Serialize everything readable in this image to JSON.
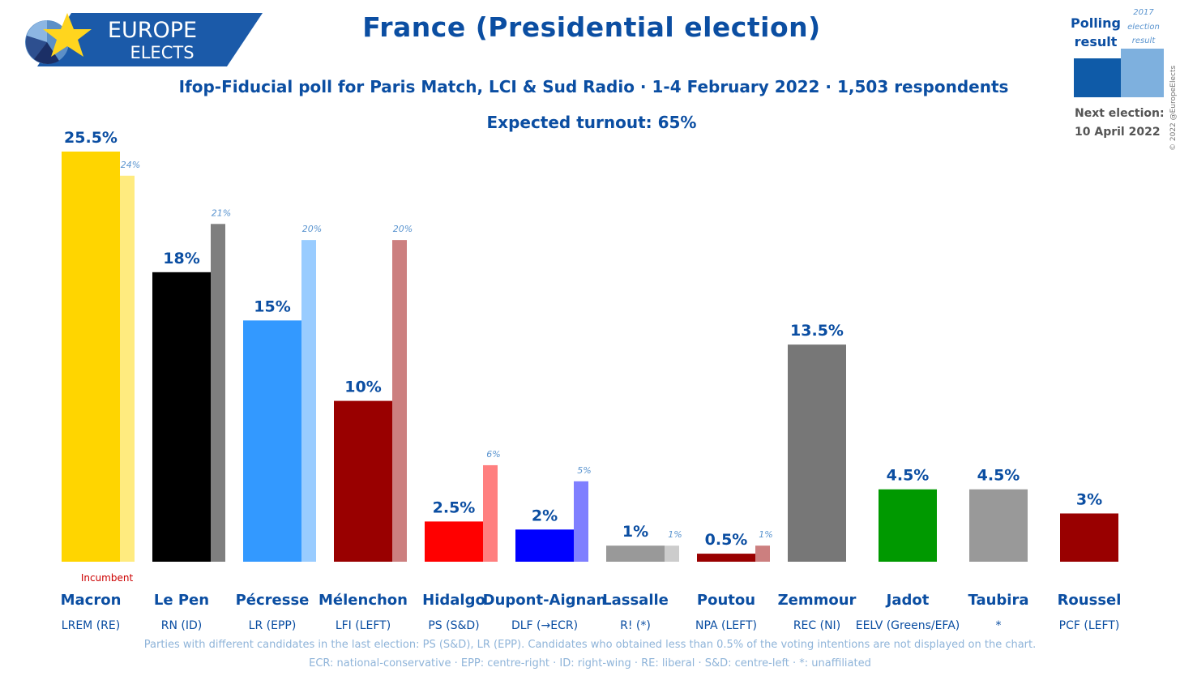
{
  "header": {
    "logo_top": "EUROPE",
    "logo_bottom": "ELECTS",
    "title": "France (Presidential election)",
    "subtitle": "Ifop-Fiducial poll for Paris Match, LCI & Sud Radio · 1-4 February 2022 · 1,503 respondents",
    "turnout": "Expected turnout: 65%"
  },
  "legend": {
    "polling_line1": "Polling",
    "polling_line2": "result",
    "prev_line1": "2017",
    "prev_line2": "election",
    "prev_line3": "result",
    "copyright": "© 2022 @EuropeElects",
    "next_label": "Next election:",
    "next_date": "10 April 2022",
    "colors": {
      "polling": "#0f5ba8",
      "previous": "#7eb0de"
    }
  },
  "chart_data": {
    "type": "bar",
    "title": "France (Presidential election)",
    "ylim": [
      0,
      25.5
    ],
    "incumbent_label": "Incumbent",
    "series": [
      {
        "name": "Polling result",
        "values": [
          25.5,
          18,
          15,
          10,
          2.5,
          2,
          1,
          0.5,
          13.5,
          4.5,
          4.5,
          3
        ]
      },
      {
        "name": "2017 election result",
        "values": [
          24,
          21,
          20,
          20,
          6,
          5,
          1,
          1,
          null,
          null,
          null,
          null
        ]
      }
    ],
    "candidates": [
      {
        "name": "Macron",
        "party": "LREM (RE)",
        "value": 25.5,
        "value_label": "25.5%",
        "prev": 24,
        "prev_label": "24%",
        "color": "#ffd500",
        "prev_color": "#ffeb7f",
        "incumbent": true
      },
      {
        "name": "Le Pen",
        "party": "RN (ID)",
        "value": 18,
        "value_label": "18%",
        "prev": 21,
        "prev_label": "21%",
        "color": "#000000",
        "prev_color": "#7f7f7f",
        "incumbent": false
      },
      {
        "name": "Pécresse",
        "party": "LR (EPP)",
        "value": 15,
        "value_label": "15%",
        "prev": 20,
        "prev_label": "20%",
        "color": "#3399ff",
        "prev_color": "#99ccff",
        "incumbent": false
      },
      {
        "name": "Mélenchon",
        "party": "LFI (LEFT)",
        "value": 10,
        "value_label": "10%",
        "prev": 20,
        "prev_label": "20%",
        "color": "#990000",
        "prev_color": "#cc7f7f",
        "incumbent": false
      },
      {
        "name": "Hidalgo",
        "party": "PS (S&D)",
        "value": 2.5,
        "value_label": "2.5%",
        "prev": 6,
        "prev_label": "6%",
        "color": "#ff0000",
        "prev_color": "#ff7f7f",
        "incumbent": false
      },
      {
        "name": "Dupont-Aignan",
        "party": "DLF (→ECR)",
        "value": 2,
        "value_label": "2%",
        "prev": 5,
        "prev_label": "5%",
        "color": "#0000ff",
        "prev_color": "#7f7fff",
        "incumbent": false
      },
      {
        "name": "Lassalle",
        "party": "R! (*)",
        "value": 1,
        "value_label": "1%",
        "prev": 1,
        "prev_label": "1%",
        "color": "#999999",
        "prev_color": "#cccccc",
        "incumbent": false
      },
      {
        "name": "Poutou",
        "party": "NPA (LEFT)",
        "value": 0.5,
        "value_label": "0.5%",
        "prev": 1,
        "prev_label": "1%",
        "color": "#990000",
        "prev_color": "#cc7f7f",
        "incumbent": false
      },
      {
        "name": "Zemmour",
        "party": "REC (NI)",
        "value": 13.5,
        "value_label": "13.5%",
        "prev": null,
        "prev_label": "",
        "color": "#777777",
        "prev_color": "",
        "incumbent": false
      },
      {
        "name": "Jadot",
        "party": "EELV (Greens/EFA)",
        "value": 4.5,
        "value_label": "4.5%",
        "prev": null,
        "prev_label": "",
        "color": "#009900",
        "prev_color": "",
        "incumbent": false
      },
      {
        "name": "Taubira",
        "party": "*",
        "value": 4.5,
        "value_label": "4.5%",
        "prev": null,
        "prev_label": "",
        "color": "#999999",
        "prev_color": "",
        "incumbent": false
      },
      {
        "name": "Roussel",
        "party": "PCF (LEFT)",
        "value": 3,
        "value_label": "3%",
        "prev": null,
        "prev_label": "",
        "color": "#990000",
        "prev_color": "",
        "incumbent": false
      }
    ]
  },
  "footer": {
    "note1": "Parties with different candidates in the last election: PS (S&D), LR (EPP). Candidates who obtained less than 0.5% of the voting intentions are not displayed on the chart.",
    "note2": "ECR: national-conservative · EPP: centre-right · ID: right-wing · RE: liberal · S&D: centre-left · *: unaffiliated"
  }
}
